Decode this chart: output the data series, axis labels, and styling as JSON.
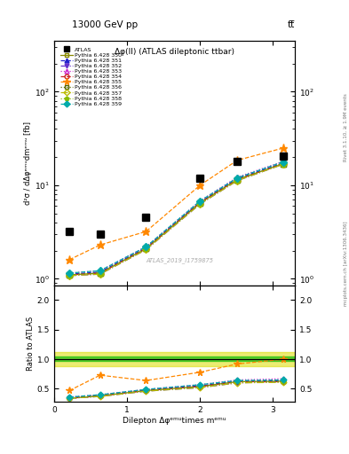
{
  "title_top": "13000 GeV pp",
  "title_right": "tt̅",
  "plot_title": "Δφ(ll) (ATLAS dileptonic ttbar)",
  "watermark": "ATLAS_2019_I1759875",
  "xlabel": "Dilepton Δφᵉᵐᵘtimes mᵉᵐᵘ",
  "ylabel_main": "d²σ / dΔφᵉᵐᵘdmᵉᵐᵘ [fb]",
  "ylabel_ratio": "Ratio to ATLAS",
  "right_label": "Rivet 3.1.10, ≥ 1.9M events",
  "right_label2": "mcplots.cern.ch [arXiv:1306.3436]",
  "atlas_x": [
    0.21,
    0.63,
    1.26,
    2.0,
    2.51,
    3.14
  ],
  "atlas_y": [
    3.2,
    3.0,
    4.5,
    12.0,
    18.0,
    20.5
  ],
  "series": [
    {
      "label": "Pythia 6.428 350",
      "color": "#888800",
      "marker": "s",
      "marker_filled": false,
      "linestyle": "-",
      "x": [
        0.21,
        0.63,
        1.26,
        2.0,
        2.51,
        3.14
      ],
      "y": [
        1.1,
        1.15,
        2.1,
        6.5,
        11.5,
        17.0
      ],
      "ratio": [
        0.34,
        0.38,
        0.47,
        0.54,
        0.62,
        0.63
      ]
    },
    {
      "label": "Pythia 6.428 351",
      "color": "#2222cc",
      "marker": "^",
      "marker_filled": true,
      "linestyle": "--",
      "x": [
        0.21,
        0.63,
        1.26,
        2.0,
        2.51,
        3.14
      ],
      "y": [
        1.12,
        1.18,
        2.15,
        6.6,
        11.8,
        17.3
      ],
      "ratio": [
        0.35,
        0.39,
        0.48,
        0.55,
        0.63,
        0.63
      ]
    },
    {
      "label": "Pythia 6.428 352",
      "color": "#6633cc",
      "marker": "v",
      "marker_filled": true,
      "linestyle": "-.",
      "x": [
        0.21,
        0.63,
        1.26,
        2.0,
        2.51,
        3.14
      ],
      "y": [
        1.08,
        1.12,
        2.05,
        6.3,
        11.2,
        16.8
      ],
      "ratio": [
        0.34,
        0.37,
        0.46,
        0.52,
        0.6,
        0.62
      ]
    },
    {
      "label": "Pythia 6.428 353",
      "color": "#cc22cc",
      "marker": "^",
      "marker_filled": false,
      "linestyle": ":",
      "x": [
        0.21,
        0.63,
        1.26,
        2.0,
        2.51,
        3.14
      ],
      "y": [
        1.15,
        1.22,
        2.2,
        6.8,
        12.2,
        18.0
      ],
      "ratio": [
        0.36,
        0.4,
        0.49,
        0.57,
        0.65,
        0.67
      ]
    },
    {
      "label": "Pythia 6.428 354",
      "color": "#cc2222",
      "marker": "o",
      "marker_filled": false,
      "linestyle": "--",
      "x": [
        0.21,
        0.63,
        1.26,
        2.0,
        2.51,
        3.14
      ],
      "y": [
        1.1,
        1.15,
        2.1,
        6.5,
        11.5,
        17.0
      ],
      "ratio": [
        0.34,
        0.38,
        0.47,
        0.54,
        0.62,
        0.62
      ]
    },
    {
      "label": "Pythia 6.428 355",
      "color": "#ff8800",
      "marker": "*",
      "marker_filled": true,
      "linestyle": "--",
      "x": [
        0.21,
        0.63,
        1.26,
        2.0,
        2.51,
        3.14
      ],
      "y": [
        1.6,
        2.3,
        3.2,
        10.0,
        18.5,
        25.0
      ],
      "ratio": [
        0.47,
        0.73,
        0.64,
        0.78,
        0.92,
        1.0
      ]
    },
    {
      "label": "Pythia 6.428 356",
      "color": "#556600",
      "marker": "s",
      "marker_filled": false,
      "linestyle": ":",
      "x": [
        0.21,
        0.63,
        1.26,
        2.0,
        2.51,
        3.14
      ],
      "y": [
        1.1,
        1.15,
        2.1,
        6.5,
        11.5,
        17.0
      ],
      "ratio": [
        0.34,
        0.38,
        0.47,
        0.54,
        0.62,
        0.62
      ]
    },
    {
      "label": "Pythia 6.428 357",
      "color": "#bbbb00",
      "marker": "D",
      "marker_filled": false,
      "linestyle": "-.",
      "x": [
        0.21,
        0.63,
        1.26,
        2.0,
        2.51,
        3.14
      ],
      "y": [
        1.08,
        1.12,
        2.05,
        6.3,
        11.2,
        16.8
      ],
      "ratio": [
        0.34,
        0.37,
        0.46,
        0.52,
        0.6,
        0.61
      ]
    },
    {
      "label": "Pythia 6.428 358",
      "color": "#88bb00",
      "marker": "p",
      "marker_filled": true,
      "linestyle": ":",
      "x": [
        0.21,
        0.63,
        1.26,
        2.0,
        2.51,
        3.14
      ],
      "y": [
        1.1,
        1.15,
        2.1,
        6.4,
        11.5,
        17.0
      ],
      "ratio": [
        0.34,
        0.38,
        0.47,
        0.53,
        0.62,
        0.62
      ]
    },
    {
      "label": "Pythia 6.428 359",
      "color": "#00aaaa",
      "marker": "D",
      "marker_filled": true,
      "linestyle": "--",
      "x": [
        0.21,
        0.63,
        1.26,
        2.0,
        2.51,
        3.14
      ],
      "y": [
        1.15,
        1.22,
        2.2,
        6.8,
        12.0,
        17.8
      ],
      "ratio": [
        0.36,
        0.4,
        0.49,
        0.57,
        0.64,
        0.65
      ]
    }
  ],
  "green_band_inner": [
    0.97,
    1.05
  ],
  "yellow_band_outer": [
    0.88,
    1.12
  ],
  "ylim_main": [
    0.85,
    350
  ],
  "ylim_ratio": [
    0.28,
    2.25
  ],
  "xlim": [
    0.0,
    3.3
  ],
  "yticks_ratio": [
    0.5,
    1.0,
    1.5,
    2.0
  ]
}
